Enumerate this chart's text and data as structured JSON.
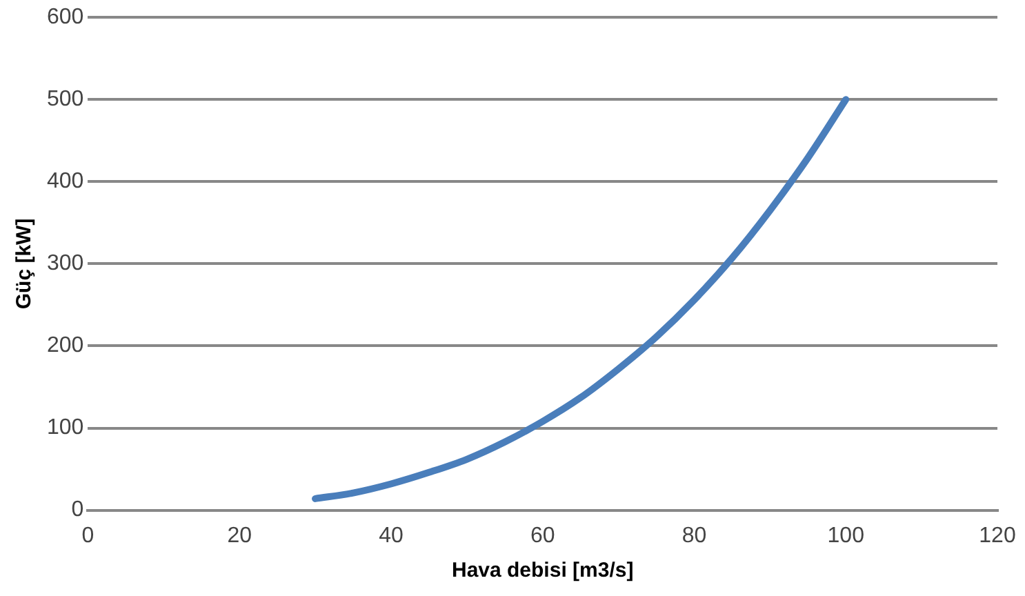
{
  "chart_data": {
    "type": "line",
    "xlabel": "Hava debisi [m3/s]",
    "ylabel": "Güç [kW]",
    "x": [
      30,
      35,
      40,
      45,
      50,
      55,
      60,
      65,
      70,
      75,
      80,
      85,
      90,
      95,
      100
    ],
    "series": [
      {
        "color": "#4a7ebb",
        "values": [
          14,
          21,
          32,
          46,
          62,
          83,
          108,
          137,
          172,
          211,
          256,
          307,
          365,
          429,
          500
        ]
      }
    ],
    "xlim": [
      0,
      120
    ],
    "xticks": [
      0,
      20,
      40,
      60,
      80,
      100,
      120
    ],
    "ylim": [
      0,
      600
    ],
    "yticks": [
      0,
      100,
      200,
      300,
      400,
      500,
      600
    ],
    "grid": "y",
    "legend": false,
    "marker": "none",
    "line_style": "solid"
  }
}
